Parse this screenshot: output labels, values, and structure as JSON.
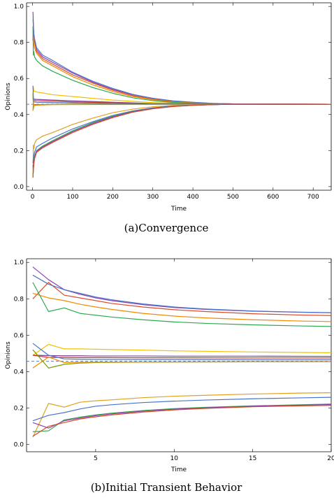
{
  "chart_data": [
    {
      "type": "line",
      "caption": "(a)Convergence",
      "xlabel": "Time",
      "ylabel": "Opinions",
      "xlim": [
        -15,
        745
      ],
      "ylim": [
        -0.02,
        1.02
      ],
      "xticks": [
        0,
        100,
        200,
        300,
        400,
        500,
        600,
        700
      ],
      "yticks": [
        0.0,
        0.2,
        0.4,
        0.6,
        0.8,
        1.0
      ],
      "xtick_labels": [
        "0",
        "100",
        "200",
        "300",
        "400",
        "500",
        "600",
        "700"
      ],
      "ytick_labels": [
        "0.0",
        "0.2",
        "0.4",
        "0.6",
        "0.8",
        "1.0"
      ],
      "reference_line": {
        "y": 0.457,
        "style": "dashed",
        "color": "#5e81b5"
      },
      "series": [
        {
          "color": "#8e44ad",
          "x": [
            1,
            2,
            3,
            5,
            10,
            25,
            50,
            100,
            150,
            200,
            250,
            300,
            350,
            400,
            450,
            500,
            600,
            745
          ],
          "y": [
            0.97,
            0.91,
            0.85,
            0.81,
            0.76,
            0.72,
            0.69,
            0.63,
            0.58,
            0.54,
            0.51,
            0.49,
            0.475,
            0.467,
            0.462,
            0.459,
            0.458,
            0.457
          ]
        },
        {
          "color": "#d94a2b",
          "x": [
            1,
            2,
            3,
            5,
            10,
            25,
            50,
            100,
            150,
            200,
            250,
            300,
            350,
            400,
            450,
            500,
            600,
            745
          ],
          "y": [
            0.81,
            0.88,
            0.85,
            0.8,
            0.75,
            0.71,
            0.68,
            0.62,
            0.575,
            0.535,
            0.505,
            0.485,
            0.472,
            0.465,
            0.461,
            0.459,
            0.458,
            0.457
          ]
        },
        {
          "color": "#4a74c9",
          "x": [
            1,
            2,
            3,
            5,
            10,
            25,
            50,
            100,
            150,
            200,
            250,
            300,
            350,
            400,
            450,
            500,
            600,
            745
          ],
          "y": [
            0.93,
            0.89,
            0.85,
            0.82,
            0.77,
            0.73,
            0.7,
            0.635,
            0.585,
            0.545,
            0.512,
            0.49,
            0.476,
            0.468,
            0.462,
            0.459,
            0.458,
            0.457
          ]
        },
        {
          "color": "#f08a00",
          "x": [
            1,
            2,
            3,
            5,
            10,
            25,
            50,
            100,
            150,
            200,
            250,
            300,
            350,
            400,
            450,
            500,
            600,
            745
          ],
          "y": [
            0.83,
            0.81,
            0.79,
            0.77,
            0.74,
            0.7,
            0.67,
            0.61,
            0.565,
            0.528,
            0.5,
            0.482,
            0.47,
            0.464,
            0.46,
            0.458,
            0.457,
            0.457
          ]
        },
        {
          "color": "#2fa84f",
          "x": [
            1,
            2,
            3,
            5,
            10,
            25,
            50,
            100,
            150,
            200,
            250,
            300,
            350,
            400,
            450,
            500,
            600,
            745
          ],
          "y": [
            0.89,
            0.73,
            0.75,
            0.72,
            0.7,
            0.67,
            0.64,
            0.59,
            0.55,
            0.518,
            0.493,
            0.477,
            0.467,
            0.462,
            0.459,
            0.458,
            0.457,
            0.457
          ]
        },
        {
          "color": "#f2c100",
          "x": [
            1,
            2,
            3,
            5,
            10,
            25,
            50,
            100,
            200,
            300,
            400,
            745
          ],
          "y": [
            0.49,
            0.55,
            0.53,
            0.53,
            0.525,
            0.52,
            0.51,
            0.5,
            0.48,
            0.466,
            0.46,
            0.457
          ]
        },
        {
          "color": "#7d3c98",
          "x": [
            1,
            2,
            3,
            5,
            10,
            50,
            100,
            200,
            300,
            745
          ],
          "y": [
            0.49,
            0.49,
            0.485,
            0.485,
            0.484,
            0.48,
            0.476,
            0.468,
            0.461,
            0.457
          ]
        },
        {
          "color": "#c0392b",
          "x": [
            1,
            2,
            3,
            5,
            10,
            50,
            100,
            200,
            300,
            745
          ],
          "y": [
            0.49,
            0.48,
            0.48,
            0.478,
            0.477,
            0.474,
            0.47,
            0.465,
            0.46,
            0.457
          ]
        },
        {
          "color": "#4a74c9",
          "x": [
            1,
            2,
            3,
            5,
            10,
            50,
            100,
            200,
            745
          ],
          "y": [
            0.56,
            0.5,
            0.47,
            0.47,
            0.468,
            0.466,
            0.464,
            0.46,
            0.457
          ]
        },
        {
          "color": "#7a9a00",
          "x": [
            1,
            2,
            3,
            5,
            10,
            50,
            100,
            745
          ],
          "y": [
            0.52,
            0.43,
            0.45,
            0.455,
            0.455,
            0.456,
            0.457,
            0.457
          ]
        },
        {
          "color": "#f08a00",
          "x": [
            1,
            2,
            3,
            5,
            10,
            50,
            745
          ],
          "y": [
            0.42,
            0.48,
            0.45,
            0.45,
            0.452,
            0.455,
            0.457
          ]
        },
        {
          "color": "#e0a020",
          "x": [
            1,
            2,
            3,
            5,
            10,
            25,
            50,
            100,
            150,
            200,
            250,
            300,
            350,
            400,
            450,
            500,
            600,
            745
          ],
          "y": [
            0.05,
            0.23,
            0.21,
            0.24,
            0.26,
            0.28,
            0.3,
            0.345,
            0.38,
            0.41,
            0.43,
            0.443,
            0.45,
            0.454,
            0.456,
            0.457,
            0.457,
            0.457
          ]
        },
        {
          "color": "#4a74c9",
          "x": [
            1,
            2,
            3,
            5,
            10,
            25,
            50,
            100,
            150,
            200,
            250,
            300,
            350,
            400,
            450,
            500,
            600,
            745
          ],
          "y": [
            0.13,
            0.16,
            0.17,
            0.19,
            0.22,
            0.24,
            0.27,
            0.32,
            0.36,
            0.395,
            0.42,
            0.437,
            0.447,
            0.452,
            0.455,
            0.457,
            0.457,
            0.457
          ]
        },
        {
          "color": "#2fa84f",
          "x": [
            1,
            2,
            3,
            5,
            10,
            25,
            50,
            100,
            150,
            200,
            250,
            300,
            350,
            400,
            450,
            500,
            600,
            745
          ],
          "y": [
            0.07,
            0.08,
            0.14,
            0.17,
            0.2,
            0.225,
            0.255,
            0.31,
            0.355,
            0.39,
            0.418,
            0.435,
            0.446,
            0.452,
            0.455,
            0.457,
            0.457,
            0.457
          ]
        },
        {
          "color": "#8e44ad",
          "x": [
            1,
            2,
            3,
            5,
            10,
            25,
            50,
            100,
            150,
            200,
            250,
            300,
            350,
            400,
            450,
            500,
            600,
            745
          ],
          "y": [
            0.12,
            0.09,
            0.13,
            0.16,
            0.195,
            0.22,
            0.25,
            0.305,
            0.35,
            0.387,
            0.416,
            0.434,
            0.445,
            0.451,
            0.455,
            0.457,
            0.457,
            0.457
          ]
        },
        {
          "color": "#d94a2b",
          "x": [
            1,
            2,
            3,
            5,
            10,
            25,
            50,
            100,
            150,
            200,
            250,
            300,
            350,
            400,
            450,
            500,
            600,
            745
          ],
          "y": [
            0.05,
            0.1,
            0.12,
            0.155,
            0.19,
            0.215,
            0.245,
            0.3,
            0.345,
            0.383,
            0.413,
            0.432,
            0.444,
            0.451,
            0.455,
            0.457,
            0.457,
            0.457
          ]
        }
      ]
    },
    {
      "type": "line",
      "caption": "(b)Initial Transient Behavior",
      "xlabel": "Time",
      "ylabel": "Opinions",
      "xlim": [
        0.6,
        20
      ],
      "ylim": [
        -0.04,
        1.02
      ],
      "xticks": [
        5,
        10,
        15,
        20
      ],
      "yticks": [
        0.0,
        0.2,
        0.4,
        0.6,
        0.8,
        1.0
      ],
      "xtick_labels": [
        "5",
        "10",
        "15",
        "20"
      ],
      "ytick_labels": [
        "0.0",
        "0.2",
        "0.4",
        "0.6",
        "0.8",
        "1.0"
      ],
      "reference_line": {
        "y": 0.457,
        "style": "dashed",
        "color": "#5e81b5"
      },
      "series": [
        {
          "color": "#8e44ad",
          "x": [
            1,
            2,
            3,
            4,
            5,
            6,
            8,
            10,
            12,
            15,
            18,
            20
          ],
          "y": [
            0.975,
            0.905,
            0.85,
            0.825,
            0.805,
            0.79,
            0.768,
            0.752,
            0.742,
            0.732,
            0.726,
            0.723
          ]
        },
        {
          "color": "#d94a2b",
          "x": [
            1,
            2,
            3,
            4,
            5,
            6,
            8,
            10,
            12,
            15,
            18,
            20
          ],
          "y": [
            0.8,
            0.89,
            0.82,
            0.805,
            0.79,
            0.775,
            0.755,
            0.74,
            0.73,
            0.718,
            0.711,
            0.708
          ]
        },
        {
          "color": "#4a74c9",
          "x": [
            1,
            2,
            3,
            4,
            5,
            6,
            8,
            10,
            12,
            15,
            18,
            20
          ],
          "y": [
            0.93,
            0.88,
            0.85,
            0.83,
            0.81,
            0.795,
            0.772,
            0.755,
            0.744,
            0.733,
            0.727,
            0.724
          ]
        },
        {
          "color": "#f08a00",
          "x": [
            1,
            2,
            3,
            4,
            5,
            6,
            8,
            10,
            12,
            15,
            18,
            20
          ],
          "y": [
            0.83,
            0.805,
            0.79,
            0.77,
            0.755,
            0.742,
            0.72,
            0.705,
            0.695,
            0.685,
            0.678,
            0.675
          ]
        },
        {
          "color": "#2fa84f",
          "x": [
            1,
            2,
            3,
            4,
            5,
            6,
            8,
            10,
            12,
            15,
            18,
            20
          ],
          "y": [
            0.89,
            0.73,
            0.75,
            0.72,
            0.71,
            0.7,
            0.685,
            0.673,
            0.665,
            0.657,
            0.651,
            0.648
          ]
        },
        {
          "color": "#f2c100",
          "x": [
            1,
            2,
            3,
            4,
            5,
            8,
            10,
            15,
            20
          ],
          "y": [
            0.49,
            0.55,
            0.525,
            0.525,
            0.523,
            0.518,
            0.514,
            0.508,
            0.504
          ]
        },
        {
          "color": "#7d3c98",
          "x": [
            1,
            2,
            3,
            4,
            5,
            8,
            10,
            15,
            20
          ],
          "y": [
            0.49,
            0.488,
            0.487,
            0.487,
            0.486,
            0.486,
            0.485,
            0.485,
            0.484
          ]
        },
        {
          "color": "#c0392b",
          "x": [
            1,
            2,
            3,
            4,
            5,
            8,
            10,
            15,
            20
          ],
          "y": [
            0.49,
            0.478,
            0.478,
            0.477,
            0.477,
            0.476,
            0.476,
            0.475,
            0.475
          ]
        },
        {
          "color": "#4a74c9",
          "x": [
            1,
            2,
            3,
            4,
            5,
            8,
            10,
            15,
            20
          ],
          "y": [
            0.555,
            0.49,
            0.47,
            0.468,
            0.467,
            0.466,
            0.466,
            0.465,
            0.465
          ]
        },
        {
          "color": "#7a9a00",
          "x": [
            1,
            2,
            3,
            4,
            5,
            8,
            10,
            15,
            20
          ],
          "y": [
            0.52,
            0.42,
            0.44,
            0.447,
            0.45,
            0.452,
            0.453,
            0.454,
            0.455
          ]
        },
        {
          "color": "#f08a00",
          "x": [
            1,
            2,
            3,
            4,
            5,
            8,
            10,
            15,
            20
          ],
          "y": [
            0.42,
            0.48,
            0.45,
            0.451,
            0.452,
            0.452,
            0.453,
            0.454,
            0.455
          ]
        },
        {
          "color": "#e0a020",
          "x": [
            1,
            2,
            3,
            4,
            5,
            6,
            8,
            10,
            12,
            15,
            18,
            20
          ],
          "y": [
            0.04,
            0.225,
            0.205,
            0.232,
            0.24,
            0.245,
            0.257,
            0.265,
            0.27,
            0.277,
            0.282,
            0.284
          ]
        },
        {
          "color": "#4a74c9",
          "x": [
            1,
            2,
            3,
            4,
            5,
            6,
            8,
            10,
            12,
            15,
            18,
            20
          ],
          "y": [
            0.13,
            0.16,
            0.175,
            0.195,
            0.21,
            0.218,
            0.23,
            0.238,
            0.244,
            0.251,
            0.256,
            0.259
          ]
        },
        {
          "color": "#2fa84f",
          "x": [
            1,
            2,
            3,
            4,
            5,
            6,
            8,
            10,
            12,
            15,
            18,
            20
          ],
          "y": [
            0.07,
            0.075,
            0.135,
            0.15,
            0.162,
            0.172,
            0.186,
            0.197,
            0.204,
            0.212,
            0.218,
            0.222
          ]
        },
        {
          "color": "#8e44ad",
          "x": [
            1,
            2,
            3,
            4,
            5,
            6,
            8,
            10,
            12,
            15,
            18,
            20
          ],
          "y": [
            0.12,
            0.09,
            0.13,
            0.145,
            0.158,
            0.168,
            0.183,
            0.194,
            0.201,
            0.21,
            0.216,
            0.219
          ]
        },
        {
          "color": "#d94a2b",
          "x": [
            1,
            2,
            3,
            4,
            5,
            6,
            8,
            10,
            12,
            15,
            18,
            20
          ],
          "y": [
            0.045,
            0.1,
            0.12,
            0.14,
            0.152,
            0.162,
            0.178,
            0.19,
            0.198,
            0.207,
            0.212,
            0.215
          ]
        }
      ]
    }
  ]
}
